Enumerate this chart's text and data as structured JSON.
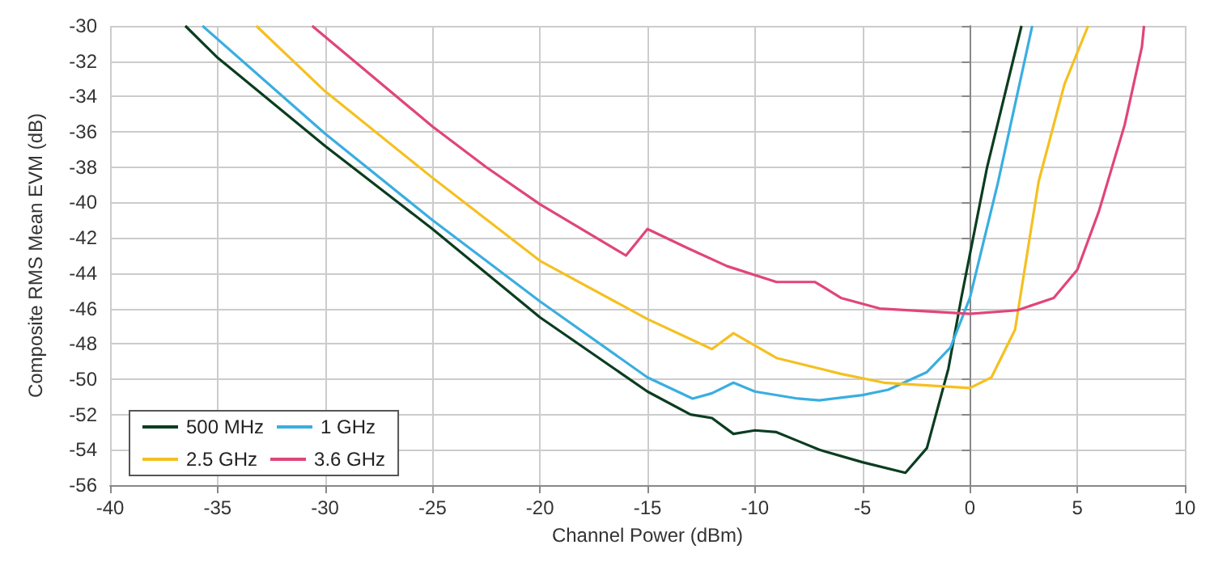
{
  "chart_data": {
    "type": "line",
    "xlabel": "Channel Power (dBm)",
    "ylabel": "Composite RMS Mean EVM (dB)",
    "xlim": [
      -40,
      10
    ],
    "xticks": [
      -40,
      -35,
      -30,
      -25,
      -20,
      -15,
      -10,
      -5,
      0,
      5,
      10
    ],
    "ylim": [
      -56,
      -30
    ],
    "yticks": [
      -56,
      -54,
      -52,
      -50,
      -48,
      -46,
      -44,
      -42,
      -40,
      -38,
      -36,
      -34,
      -32,
      -30
    ],
    "grid": true,
    "legend": "bottom left",
    "marker": "none",
    "line_style": "solid",
    "series": [
      {
        "name": "500 MHz",
        "color": "#0b3d20",
        "x": [
          -36.5,
          -35,
          -30,
          -25,
          -20,
          -15,
          -13,
          -12,
          -11,
          -10,
          -9,
          -8,
          -7,
          -5,
          -3,
          -2,
          -1,
          -0.4,
          0.8,
          2.4
        ],
        "values": [
          -30,
          -31.8,
          -36.8,
          -41.5,
          -46.5,
          -50.7,
          -52,
          -52.2,
          -53.1,
          -52.9,
          -53,
          -53.5,
          -54,
          -54.7,
          -55.3,
          -53.9,
          -49.4,
          -45.4,
          -38,
          -30
        ]
      },
      {
        "name": "1 GHz",
        "color": "#3aaee0",
        "x": [
          -35.7,
          -30,
          -25,
          -20,
          -15,
          -12.9,
          -12,
          -11,
          -10,
          -8,
          -7,
          -5,
          -3.8,
          -2,
          -0.9,
          0,
          1.3,
          2.9
        ],
        "values": [
          -30,
          -36.1,
          -41,
          -45.6,
          -49.9,
          -51.1,
          -50.8,
          -50.2,
          -50.7,
          -51.1,
          -51.2,
          -50.9,
          -50.6,
          -49.6,
          -48.2,
          -45.4,
          -38.9,
          -30
        ]
      },
      {
        "name": "2.5 GHz",
        "color": "#f5c021",
        "x": [
          -33.2,
          -30,
          -25,
          -20,
          -15,
          -12,
          -11,
          -9,
          -6,
          -4,
          0,
          1,
          2.1,
          3.2,
          4.4,
          5.5
        ],
        "values": [
          -30,
          -33.7,
          -38.6,
          -43.3,
          -46.6,
          -48.3,
          -47.4,
          -48.8,
          -49.7,
          -50.2,
          -50.5,
          -49.9,
          -47.2,
          -38.8,
          -33.3,
          -30
        ]
      },
      {
        "name": "3.6 GHz",
        "color": "#e0457b",
        "x": [
          -30.6,
          -25,
          -22.5,
          -20,
          -16,
          -15,
          -13.1,
          -11.3,
          -9,
          -7.2,
          -6,
          -4.2,
          0,
          2.2,
          3.9,
          5,
          6,
          7.2,
          8,
          8.1
        ],
        "values": [
          -30,
          -35.7,
          -38,
          -40.1,
          -43,
          -41.5,
          -42.6,
          -43.6,
          -44.5,
          -44.5,
          -45.4,
          -46,
          -46.3,
          -46.1,
          -45.4,
          -43.8,
          -40.5,
          -35.6,
          -31.2,
          -30
        ]
      }
    ]
  }
}
